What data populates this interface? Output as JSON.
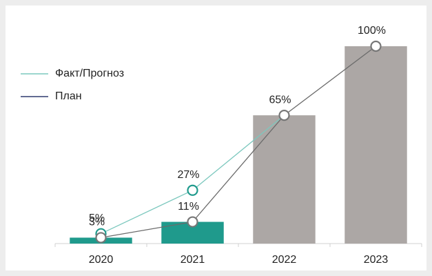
{
  "chart_data": {
    "type": "bar",
    "categories": [
      "2020",
      "2021",
      "2022",
      "2023"
    ],
    "values": [
      3,
      11,
      65,
      100
    ],
    "colors": [
      "#1f9a8c",
      "#1f9a8c",
      "#aca7a5",
      "#aca7a5"
    ],
    "ylim": [
      0,
      100
    ],
    "series": [
      {
        "name": "Факт/Прогноз",
        "type": "line",
        "color": "#7cc8be",
        "marker_color": "#1f9a8c",
        "values": [
          5,
          27,
          65,
          null
        ],
        "value_labels": [
          "5%",
          "27%",
          null,
          null
        ]
      },
      {
        "name": "План",
        "type": "line",
        "color": "#2e3a6e",
        "marker_color": "#777777",
        "values": [
          3,
          11,
          65,
          100
        ],
        "value_labels": [
          "3%",
          "11%",
          "65%",
          "100%"
        ]
      }
    ],
    "legend": "upper left"
  }
}
